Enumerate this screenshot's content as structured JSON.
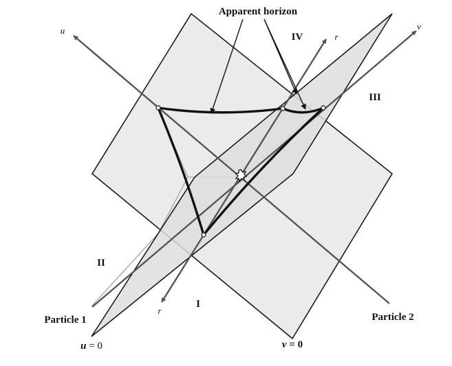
{
  "labels": {
    "title": "Apparent horizon",
    "region_I": "I",
    "region_II": "II",
    "region_III": "III",
    "region_IV": "IV",
    "axis_u": "u",
    "axis_v": "v",
    "axis_r_top": "r",
    "axis_r_bottom": "r",
    "particle_1": "Particle 1",
    "particle_2": "Particle 2",
    "u_zero_var": "u",
    "u_zero_eq": " = 0",
    "v_zero_var": "v",
    "v_zero_eq": " = 0"
  },
  "colors": {
    "plane_fill": "#ebebeb",
    "plane_edge": "#1a1a1a",
    "axis": "#555555",
    "horizon": "#111111",
    "hidden_line": "#a8a8a8",
    "text": "#111111"
  }
}
